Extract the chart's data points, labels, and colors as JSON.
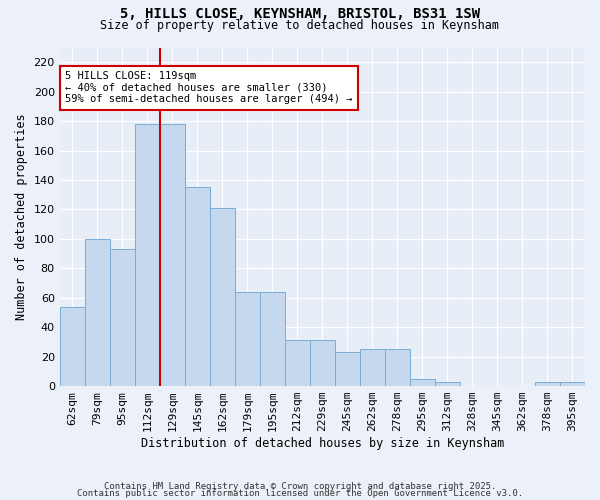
{
  "title_line1": "5, HILLS CLOSE, KEYNSHAM, BRISTOL, BS31 1SW",
  "title_line2": "Size of property relative to detached houses in Keynsham",
  "xlabel": "Distribution of detached houses by size in Keynsham",
  "ylabel": "Number of detached properties",
  "categories": [
    "62sqm",
    "79sqm",
    "95sqm",
    "112sqm",
    "129sqm",
    "145sqm",
    "162sqm",
    "179sqm",
    "195sqm",
    "212sqm",
    "229sqm",
    "245sqm",
    "262sqm",
    "278sqm",
    "295sqm",
    "312sqm",
    "328sqm",
    "345sqm",
    "362sqm",
    "378sqm",
    "395sqm"
  ],
  "values": [
    54,
    100,
    93,
    178,
    178,
    135,
    121,
    64,
    64,
    31,
    31,
    23,
    25,
    25,
    5,
    3,
    0,
    0,
    0,
    3,
    3
  ],
  "bar_color": "#c5d8ed",
  "bar_edge_color": "#7aadd4",
  "ylim": [
    0,
    230
  ],
  "yticks": [
    0,
    20,
    40,
    60,
    80,
    100,
    120,
    140,
    160,
    180,
    200,
    220
  ],
  "vline_x_index": 3,
  "marker_label": "5 HILLS CLOSE: 119sqm",
  "annotation_line1": "← 40% of detached houses are smaller (330)",
  "annotation_line2": "59% of semi-detached houses are larger (494) →",
  "annotation_box_facecolor": "#ffffff",
  "annotation_box_edgecolor": "#cc0000",
  "vline_color": "#cc0000",
  "fig_facecolor": "#ecf0f8",
  "ax_facecolor": "#e8eef8",
  "grid_color": "#ffffff",
  "footnote1": "Contains HM Land Registry data © Crown copyright and database right 2025.",
  "footnote2": "Contains public sector information licensed under the Open Government Licence v3.0."
}
